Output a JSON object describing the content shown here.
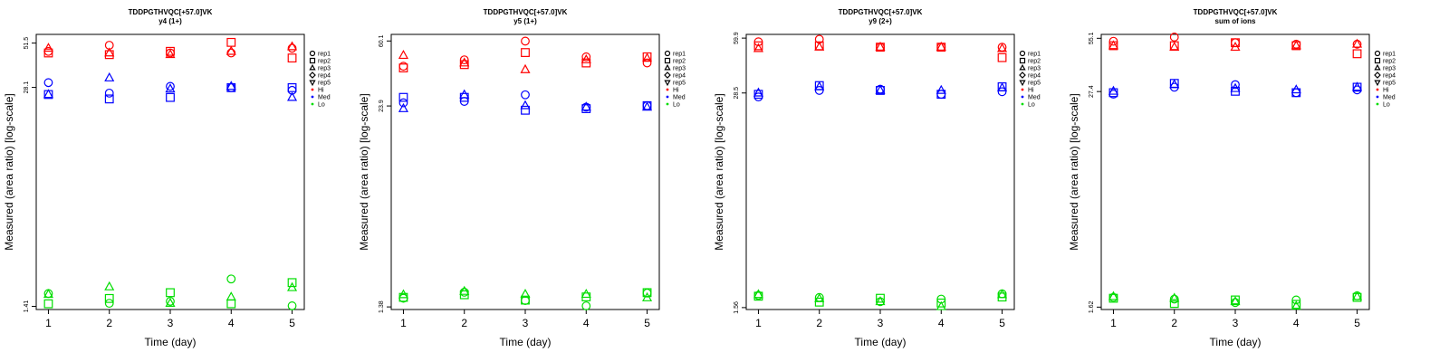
{
  "chart_data": [
    {
      "type": "scatter",
      "title": "TDDPGTHVQC[+57.0]VK",
      "subtitle": "y4 (1+)",
      "xlabel": "Time (day)",
      "ylabel": "Measured (area ratio) [log-scale]",
      "log_y": true,
      "ylim": [
        1.35,
        58
      ],
      "xlim": [
        0.8,
        5.2
      ],
      "xticks": [
        "1",
        "2",
        "3",
        "4",
        "5"
      ],
      "yticks": [
        1.41,
        28.1,
        51.5
      ],
      "ytick_labels": [
        "1.41",
        "28.1",
        "51.5"
      ],
      "series": [
        {
          "name": "rep1",
          "group": "Hi",
          "x": [
            1,
            2,
            3,
            4,
            5
          ],
          "y": [
            46.0,
            50.0,
            45.0,
            45.0,
            48.0
          ]
        },
        {
          "name": "rep2",
          "group": "Hi",
          "x": [
            1,
            2,
            3,
            4,
            5
          ],
          "y": [
            45.0,
            44.0,
            46.0,
            52.0,
            42.0
          ]
        },
        {
          "name": "rep3",
          "group": "Hi",
          "x": [
            1,
            2,
            3,
            4,
            5
          ],
          "y": [
            48.0,
            45.0,
            44.0,
            46.0,
            49.0
          ]
        },
        {
          "name": "rep1",
          "group": "Med",
          "x": [
            1,
            2,
            3,
            4,
            5
          ],
          "y": [
            30.0,
            26.0,
            28.5,
            28.0,
            27.0
          ]
        },
        {
          "name": "rep2",
          "group": "Med",
          "x": [
            1,
            2,
            3,
            4,
            5
          ],
          "y": [
            25.5,
            24.0,
            24.5,
            28.0,
            28.0
          ]
        },
        {
          "name": "rep3",
          "group": "Med",
          "x": [
            1,
            2,
            3,
            4,
            5
          ],
          "y": [
            25.5,
            32.0,
            27.5,
            28.5,
            24.5
          ]
        },
        {
          "name": "rep1",
          "group": "Lo",
          "x": [
            1,
            2,
            3,
            4,
            5
          ],
          "y": [
            1.68,
            1.47,
            1.51,
            2.05,
            1.42
          ]
        },
        {
          "name": "rep2",
          "group": "Lo",
          "x": [
            1,
            2,
            3,
            4,
            5
          ],
          "y": [
            1.46,
            1.57,
            1.7,
            1.46,
            1.95
          ]
        },
        {
          "name": "rep3",
          "group": "Lo",
          "x": [
            1,
            2,
            3,
            4,
            5
          ],
          "y": [
            1.66,
            1.84,
            1.47,
            1.6,
            1.82
          ]
        }
      ]
    },
    {
      "type": "scatter",
      "title": "TDDPGTHVQC[+57.0]VK",
      "subtitle": "y5 (1+)",
      "xlabel": "Time (day)",
      "ylabel": "Measured (area ratio) [log-scale]",
      "log_y": true,
      "ylim": [
        1.33,
        66
      ],
      "xlim": [
        0.8,
        5.2
      ],
      "xticks": [
        "1",
        "2",
        "3",
        "4",
        "5"
      ],
      "yticks": [
        1.38,
        23.9,
        60.1
      ],
      "ytick_labels": [
        "1.38",
        "23.9",
        "60.1"
      ],
      "series": [
        {
          "name": "rep1",
          "group": "Hi",
          "x": [
            1,
            2,
            3,
            4,
            5
          ],
          "y": [
            42.0,
            46.0,
            60.0,
            48.0,
            44.0
          ]
        },
        {
          "name": "rep2",
          "group": "Hi",
          "x": [
            1,
            2,
            3,
            4,
            5
          ],
          "y": [
            41.0,
            43.0,
            51.0,
            44.0,
            48.0
          ]
        },
        {
          "name": "rep3",
          "group": "Hi",
          "x": [
            1,
            2,
            3,
            4,
            5
          ],
          "y": [
            49.0,
            44.0,
            40.0,
            46.0,
            47.0
          ]
        },
        {
          "name": "rep1",
          "group": "Med",
          "x": [
            1,
            2,
            3,
            4,
            5
          ],
          "y": [
            25.0,
            25.5,
            28.0,
            23.5,
            24.0
          ]
        },
        {
          "name": "rep2",
          "group": "Med",
          "x": [
            1,
            2,
            3,
            4,
            5
          ],
          "y": [
            27.0,
            27.0,
            22.5,
            23.0,
            24.0
          ]
        },
        {
          "name": "rep3",
          "group": "Med",
          "x": [
            1,
            2,
            3,
            4,
            5
          ],
          "y": [
            23.0,
            28.0,
            24.0,
            23.5,
            23.5
          ]
        },
        {
          "name": "rep1",
          "group": "Lo",
          "x": [
            1,
            2,
            3,
            4,
            5
          ],
          "y": [
            1.56,
            1.7,
            1.51,
            1.4,
            1.68
          ]
        },
        {
          "name": "rep2",
          "group": "Lo",
          "x": [
            1,
            2,
            3,
            4,
            5
          ],
          "y": [
            1.58,
            1.64,
            1.52,
            1.59,
            1.69
          ]
        },
        {
          "name": "rep3",
          "group": "Lo",
          "x": [
            1,
            2,
            3,
            4,
            5
          ],
          "y": [
            1.64,
            1.72,
            1.65,
            1.65,
            1.57
          ]
        }
      ]
    },
    {
      "type": "scatter",
      "title": "TDDPGTHVQC[+57.0]VK",
      "subtitle": "y9 (2+)",
      "xlabel": "Time (day)",
      "ylabel": "Measured (area ratio) [log-scale]",
      "log_y": true,
      "ylim": [
        1.52,
        63
      ],
      "xlim": [
        0.8,
        5.2
      ],
      "xticks": [
        "1",
        "2",
        "3",
        "4",
        "5"
      ],
      "yticks": [
        1.56,
        28.5,
        59.9
      ],
      "ytick_labels": [
        "1.56",
        "28.5",
        "59.9"
      ],
      "series": [
        {
          "name": "rep1",
          "group": "Hi",
          "x": [
            1,
            2,
            3,
            4,
            5
          ],
          "y": [
            57.0,
            59.0,
            53.0,
            53.0,
            53.0
          ]
        },
        {
          "name": "rep2",
          "group": "Hi",
          "x": [
            1,
            2,
            3,
            4,
            5
          ],
          "y": [
            54.0,
            54.0,
            53.0,
            53.0,
            46.0
          ]
        },
        {
          "name": "rep3",
          "group": "Hi",
          "x": [
            1,
            2,
            3,
            4,
            5
          ],
          "y": [
            52.0,
            53.0,
            53.0,
            53.0,
            52.0
          ]
        },
        {
          "name": "rep1",
          "group": "Med",
          "x": [
            1,
            2,
            3,
            4,
            5
          ],
          "y": [
            27.0,
            29.5,
            30.0,
            28.0,
            29.0
          ]
        },
        {
          "name": "rep2",
          "group": "Med",
          "x": [
            1,
            2,
            3,
            4,
            5
          ],
          "y": [
            28.0,
            31.5,
            29.5,
            28.0,
            31.0
          ]
        },
        {
          "name": "rep3",
          "group": "Med",
          "x": [
            1,
            2,
            3,
            4,
            5
          ],
          "y": [
            28.5,
            31.0,
            29.5,
            29.5,
            30.5
          ]
        },
        {
          "name": "rep1",
          "group": "Lo",
          "x": [
            1,
            2,
            3,
            4,
            5
          ],
          "y": [
            1.84,
            1.79,
            1.69,
            1.75,
            1.88
          ]
        },
        {
          "name": "rep2",
          "group": "Lo",
          "x": [
            1,
            2,
            3,
            4,
            5
          ],
          "y": [
            1.82,
            1.68,
            1.77,
            1.66,
            1.8
          ]
        },
        {
          "name": "rep3",
          "group": "Lo",
          "x": [
            1,
            2,
            3,
            4,
            5
          ],
          "y": [
            1.86,
            1.76,
            1.69,
            1.58,
            1.86
          ]
        }
      ]
    },
    {
      "type": "scatter",
      "title": "TDDPGTHVQC[+57.0]VK",
      "subtitle": "sum of ions",
      "xlabel": "Time (day)",
      "ylabel": "Measured (area ratio) [log-scale]",
      "log_y": true,
      "ylim": [
        1.57,
        58
      ],
      "xlim": [
        0.8,
        5.2
      ],
      "xticks": [
        "1",
        "2",
        "3",
        "4",
        "5"
      ],
      "yticks": [
        1.62,
        27.4,
        55.1
      ],
      "ytick_labels": [
        "1.62",
        "27.4",
        "55.1"
      ],
      "series": [
        {
          "name": "rep1",
          "group": "Hi",
          "x": [
            1,
            2,
            3,
            4,
            5
          ],
          "y": [
            53.0,
            56.0,
            52.0,
            51.0,
            51.0
          ]
        },
        {
          "name": "rep2",
          "group": "Hi",
          "x": [
            1,
            2,
            3,
            4,
            5
          ],
          "y": [
            50.0,
            50.0,
            52.0,
            50.0,
            45.0
          ]
        },
        {
          "name": "rep3",
          "group": "Hi",
          "x": [
            1,
            2,
            3,
            4,
            5
          ],
          "y": [
            50.0,
            49.0,
            49.0,
            50.0,
            51.0
          ]
        },
        {
          "name": "rep1",
          "group": "Med",
          "x": [
            1,
            2,
            3,
            4,
            5
          ],
          "y": [
            26.5,
            29.0,
            30.0,
            27.0,
            28.0
          ]
        },
        {
          "name": "rep2",
          "group": "Med",
          "x": [
            1,
            2,
            3,
            4,
            5
          ],
          "y": [
            27.0,
            30.5,
            27.5,
            27.0,
            29.0
          ]
        },
        {
          "name": "rep3",
          "group": "Med",
          "x": [
            1,
            2,
            3,
            4,
            5
          ],
          "y": [
            27.5,
            30.0,
            28.5,
            28.0,
            29.0
          ]
        },
        {
          "name": "rep1",
          "group": "Lo",
          "x": [
            1,
            2,
            3,
            4,
            5
          ],
          "y": [
            1.84,
            1.8,
            1.72,
            1.78,
            1.88
          ]
        },
        {
          "name": "rep2",
          "group": "Lo",
          "x": [
            1,
            2,
            3,
            4,
            5
          ],
          "y": [
            1.82,
            1.7,
            1.78,
            1.68,
            1.84
          ]
        },
        {
          "name": "rep3",
          "group": "Lo",
          "x": [
            1,
            2,
            3,
            4,
            5
          ],
          "y": [
            1.86,
            1.82,
            1.74,
            1.64,
            1.86
          ]
        }
      ]
    }
  ],
  "legend": {
    "entries": [
      {
        "label": "rep1",
        "kind": "shape",
        "symbol": "circle"
      },
      {
        "label": "rep2",
        "kind": "shape",
        "symbol": "square"
      },
      {
        "label": "rep3",
        "kind": "shape",
        "symbol": "triangle-up"
      },
      {
        "label": "rep4",
        "kind": "shape",
        "symbol": "diamond"
      },
      {
        "label": "rep5",
        "kind": "shape",
        "symbol": "triangle-down"
      },
      {
        "label": "Hi",
        "kind": "color",
        "color": "#ff0000"
      },
      {
        "label": "Med",
        "kind": "color",
        "color": "#0000ff"
      },
      {
        "label": "Lo",
        "kind": "color",
        "color": "#00dd00"
      }
    ],
    "placement": "right"
  },
  "colors": {
    "Hi": "#ff0000",
    "Med": "#0000ff",
    "Lo": "#00dd00"
  }
}
